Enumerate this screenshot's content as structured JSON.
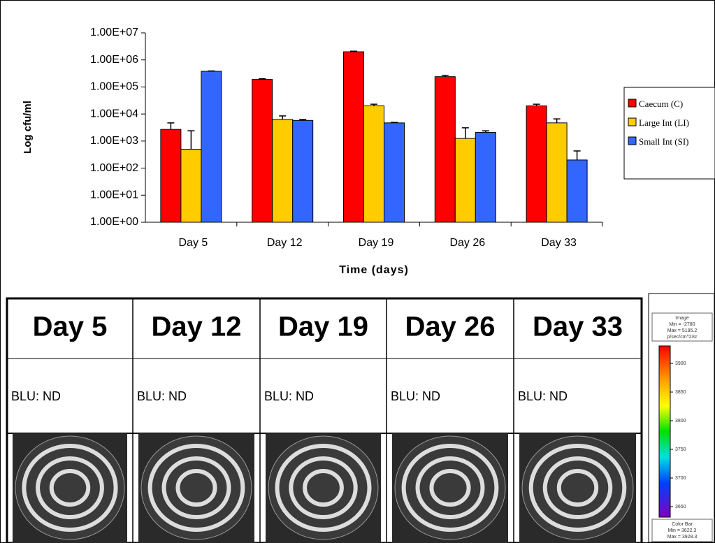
{
  "chart_data": {
    "type": "bar",
    "y_label": "Log cfu/ml",
    "x_label": "Time (days)",
    "categories": [
      "Day 5",
      "Day 12",
      "Day 19",
      "Day 26",
      "Day 33"
    ],
    "log_scale": true,
    "ylim": [
      1,
      10000000
    ],
    "yticks": [
      {
        "value": 1,
        "label": "1.00E+00"
      },
      {
        "value": 10,
        "label": "1.00E+01"
      },
      {
        "value": 100,
        "label": "1.00E+02"
      },
      {
        "value": 1000,
        "label": "1.00E+03"
      },
      {
        "value": 10000,
        "label": "1.00E+04"
      },
      {
        "value": 100000,
        "label": "1.00E+05"
      },
      {
        "value": 1000000,
        "label": "1.00E+06"
      },
      {
        "value": 10000000,
        "label": "1.00E+07"
      }
    ],
    "legend": "right",
    "series": [
      {
        "name": "Caecum (C)",
        "color": "#ff0000",
        "values": [
          2700,
          190000,
          2000000,
          240000,
          20000
        ],
        "errors": [
          2000,
          10000,
          100000,
          30000,
          3000
        ]
      },
      {
        "name": "Large Int (LI)",
        "color": "#ffcc00",
        "values": [
          500,
          6300,
          20000,
          1250,
          4700
        ],
        "errors": [
          1900,
          2200,
          3000,
          1850,
          1900
        ]
      },
      {
        "name": "Small Int (SI)",
        "color": "#3366ff",
        "values": [
          380000,
          5800,
          4700,
          2100,
          200
        ],
        "errors": [
          10000,
          500,
          200,
          300,
          230
        ]
      }
    ]
  },
  "table": {
    "header": [
      "Day 5",
      "Day 12",
      "Day 19",
      "Day 26",
      "Day 33"
    ],
    "rows": [
      [
        "BLU: ND",
        "BLU: ND",
        "BLU: ND",
        "BLU: ND",
        "BLU: ND"
      ]
    ]
  },
  "color_bar": {
    "header": [
      "Image",
      "Min = -2780",
      "Max = 5195.2",
      "p/sec/cm^2/sr"
    ],
    "ticks": [
      3900,
      3850,
      3800,
      3750,
      3700,
      3650
    ],
    "footer": [
      "Color Bar",
      "Min = 3622.3",
      "Max = 3928.3"
    ]
  }
}
